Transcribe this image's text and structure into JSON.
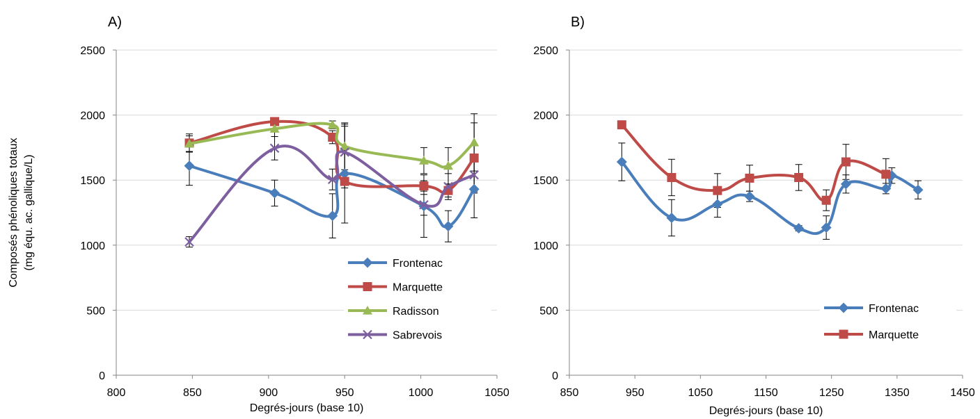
{
  "colors": {
    "Frontenac": "#4a7ebb",
    "Marquette": "#be4b48",
    "Radisson": "#98b954",
    "Sabrevois": "#7d5fa0",
    "grid": "#d9d9d9",
    "axis": "#868686",
    "errorbar": "#000000"
  },
  "chart_data": [
    {
      "type": "line",
      "panel_label": "A)",
      "xlabel": "Degrés-jours (base 10)",
      "ylabel_lines": [
        "Composés phénoliques totaux",
        "(mg équ. ac. gallique/L)"
      ],
      "xlim": [
        800,
        1050
      ],
      "ylim": [
        0,
        2500
      ],
      "xticks": [
        800,
        850,
        900,
        950,
        1000,
        1050
      ],
      "yticks": [
        0,
        500,
        1000,
        1500,
        2000,
        2500
      ],
      "grid": "horizontal",
      "legend_position": "bottom-right",
      "series": [
        {
          "name": "Frontenac",
          "marker": "diamond",
          "x": [
            848,
            904,
            942,
            950,
            1002,
            1018,
            1035
          ],
          "y": [
            1610,
            1400,
            1225,
            1550,
            1300,
            1145,
            1430
          ],
          "err": [
            150,
            100,
            170,
            380,
            240,
            120,
            220
          ]
        },
        {
          "name": "Marquette",
          "marker": "square",
          "x": [
            848,
            904,
            942,
            950,
            1002,
            1018,
            1035
          ],
          "y": [
            1785,
            1950,
            1830,
            1490,
            1455,
            1420,
            1670
          ],
          "err": [
            70,
            30,
            50,
            50,
            40,
            50,
            270
          ]
        },
        {
          "name": "Radisson",
          "marker": "triangle",
          "x": [
            848,
            904,
            942,
            950,
            1002,
            1018,
            1035
          ],
          "y": [
            1780,
            1895,
            1925,
            1760,
            1650,
            1610,
            1790
          ],
          "err": [
            60,
            60,
            30,
            180,
            100,
            140,
            220
          ]
        },
        {
          "name": "Sabrevois",
          "marker": "x",
          "x": [
            848,
            904,
            942,
            950,
            1002,
            1018,
            1035
          ],
          "y": [
            1025,
            1745,
            1505,
            1715,
            1310,
            1450,
            1540
          ],
          "err": [
            40,
            90,
            80,
            200,
            80,
            100,
            130
          ]
        }
      ]
    },
    {
      "type": "line",
      "panel_label": "B)",
      "xlabel": "Degrés-jours (base 10)",
      "xlim": [
        850,
        1450
      ],
      "ylim": [
        0,
        2500
      ],
      "xticks": [
        850,
        950,
        1050,
        1150,
        1250,
        1350,
        1450
      ],
      "yticks": [
        0,
        500,
        1000,
        1500,
        2000,
        2500
      ],
      "grid": "horizontal",
      "legend_position": "bottom-right",
      "series": [
        {
          "name": "Frontenac",
          "marker": "diamond",
          "x": [
            930,
            1006,
            1076,
            1125,
            1200,
            1242,
            1272,
            1333,
            1342,
            1382
          ],
          "y": [
            1640,
            1210,
            1315,
            1375,
            1130,
            1135,
            1470,
            1435,
            1535,
            1425
          ],
          "err": [
            145,
            140,
            100,
            40,
            20,
            90,
            70,
            40,
            60,
            70
          ]
        },
        {
          "name": "Marquette",
          "marker": "square",
          "x": [
            930,
            1006,
            1076,
            1125,
            1200,
            1242,
            1272,
            1333
          ],
          "y": [
            1925,
            1520,
            1420,
            1515,
            1520,
            1345,
            1640,
            1545
          ],
          "err": [
            20,
            140,
            130,
            100,
            100,
            80,
            135,
            120
          ]
        }
      ]
    }
  ]
}
